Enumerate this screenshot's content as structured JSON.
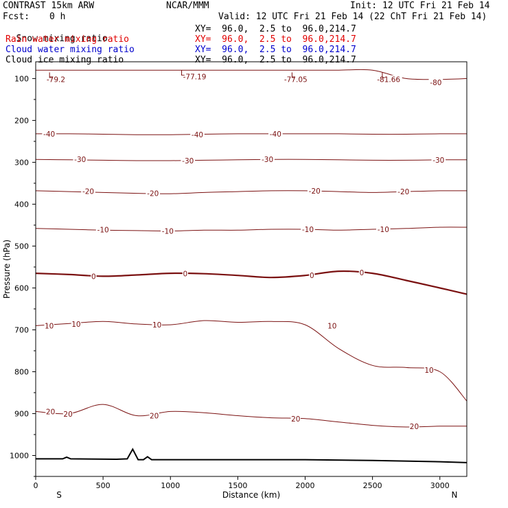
{
  "header": {
    "model": "CONTRAST 15km ARW",
    "org": "NCAR/MMM",
    "init": "Init: 12 UTC Fri 21 Feb 14",
    "fcst_label": "Fcst:",
    "fcst_value": "0 h",
    "valid": "Valid: 12 UTC Fri 21 Feb 14 (22 ChT Fri 21 Feb 14)"
  },
  "legend": [
    {
      "name": "Snow mixing ratio",
      "xy": "XY=  96.0,  2.5 to  96.0,214.7",
      "color": "#000000"
    },
    {
      "name": "Rain water mixing ratio",
      "xy": "XY=  96.0,  2.5 to  96.0,214.7",
      "color": "#e00000"
    },
    {
      "name": "Cloud water mixing ratio",
      "xy": "XY=  96.0,  2.5 to  96.0,214.7",
      "color": "#0000cc"
    },
    {
      "name": "Cloud ice mixing ratio",
      "xy": "XY=  96.0,  2.5 to  96.0,214.7",
      "color": "#000000"
    }
  ],
  "chart_data": {
    "type": "line",
    "title": "",
    "xlabel": "Distance (km)",
    "ylabel": "Pressure (hPa)",
    "xlim": [
      0,
      3200
    ],
    "ylim": [
      1050,
      60
    ],
    "x_ticks": [
      0,
      500,
      1000,
      1500,
      2000,
      2500,
      3000
    ],
    "y_ticks": [
      100,
      200,
      300,
      400,
      500,
      600,
      700,
      800,
      900,
      1000
    ],
    "end_labels": {
      "left": "S",
      "right": "N"
    },
    "contour_color": "#7a1010",
    "terrain_color": "#000000",
    "x": [
      0,
      250,
      500,
      750,
      1000,
      1250,
      1500,
      1750,
      2000,
      2250,
      2500,
      2750,
      3000,
      3200
    ],
    "isotherms": [
      {
        "level": 20,
        "pressure": [
          895,
          900,
          878,
          905,
          895,
          898,
          905,
          910,
          912,
          920,
          928,
          932,
          930,
          930
        ]
      },
      {
        "level": 10,
        "pressure": [
          690,
          685,
          680,
          686,
          688,
          678,
          682,
          680,
          688,
          745,
          785,
          790,
          800,
          870
        ]
      },
      {
        "level": 0,
        "pressure": [
          565,
          568,
          572,
          569,
          565,
          566,
          570,
          575,
          570,
          560,
          565,
          582,
          600,
          615
        ]
      },
      {
        "level": -10,
        "pressure": [
          458,
          460,
          462,
          463,
          464,
          462,
          462,
          460,
          460,
          462,
          460,
          458,
          455,
          455
        ]
      },
      {
        "level": -20,
        "pressure": [
          368,
          370,
          372,
          374,
          375,
          372,
          370,
          368,
          368,
          370,
          372,
          370,
          368,
          368
        ]
      },
      {
        "level": -30,
        "pressure": [
          293,
          294,
          295,
          296,
          296,
          295,
          294,
          293,
          293,
          294,
          295,
          295,
          294,
          294
        ]
      },
      {
        "level": -40,
        "pressure": [
          232,
          232,
          233,
          234,
          234,
          233,
          232,
          232,
          232,
          232,
          233,
          233,
          232,
          232
        ]
      },
      {
        "level": -80,
        "pressure": [
          80,
          80,
          80,
          80,
          80,
          80,
          80,
          80,
          80,
          80,
          80,
          100,
          102,
          100
        ]
      }
    ],
    "contour_labels": [
      {
        "text": "-79.2",
        "x": 150,
        "p": 102
      },
      {
        "text": "-77.19",
        "x": 1180,
        "p": 95
      },
      {
        "text": "-77.05",
        "x": 1930,
        "p": 102
      },
      {
        "text": "-81.66",
        "x": 2620,
        "p": 102
      },
      {
        "text": "-80",
        "x": 2970,
        "p": 109
      },
      {
        "text": "-40",
        "x": 100,
        "p": 232
      },
      {
        "text": "-40",
        "x": 1200,
        "p": 234
      },
      {
        "text": "-40",
        "x": 1780,
        "p": 232
      },
      {
        "text": "-30",
        "x": 330,
        "p": 293
      },
      {
        "text": "-30",
        "x": 1130,
        "p": 296
      },
      {
        "text": "-30",
        "x": 1720,
        "p": 293
      },
      {
        "text": "-30",
        "x": 2990,
        "p": 294
      },
      {
        "text": "-20",
        "x": 390,
        "p": 369
      },
      {
        "text": "-20",
        "x": 870,
        "p": 374
      },
      {
        "text": "-20",
        "x": 2070,
        "p": 368
      },
      {
        "text": "-20",
        "x": 2730,
        "p": 370
      },
      {
        "text": "-10",
        "x": 500,
        "p": 461
      },
      {
        "text": "-10",
        "x": 980,
        "p": 464
      },
      {
        "text": "-10",
        "x": 2020,
        "p": 460
      },
      {
        "text": "-10",
        "x": 2580,
        "p": 460
      },
      {
        "text": "0",
        "x": 430,
        "p": 572
      },
      {
        "text": "0",
        "x": 1110,
        "p": 566
      },
      {
        "text": "0",
        "x": 2050,
        "p": 570
      },
      {
        "text": "0",
        "x": 2420,
        "p": 563
      },
      {
        "text": "10",
        "x": 100,
        "p": 690
      },
      {
        "text": "10",
        "x": 300,
        "p": 686
      },
      {
        "text": "10",
        "x": 900,
        "p": 688
      },
      {
        "text": "10",
        "x": 2200,
        "p": 690
      },
      {
        "text": "10",
        "x": 2920,
        "p": 796
      },
      {
        "text": "20",
        "x": 110,
        "p": 895
      },
      {
        "text": "20",
        "x": 240,
        "p": 901
      },
      {
        "text": "20",
        "x": 880,
        "p": 905
      },
      {
        "text": "20",
        "x": 1930,
        "p": 912
      },
      {
        "text": "20",
        "x": 2810,
        "p": 930
      }
    ],
    "low_markers": [
      {
        "text": "L",
        "x": 110,
        "p": 92
      },
      {
        "text": "L",
        "x": 1090,
        "p": 86
      },
      {
        "text": "L",
        "x": 1910,
        "p": 92
      },
      {
        "text": "L",
        "x": 2580,
        "p": 92
      }
    ],
    "terrain": {
      "x": [
        0,
        200,
        230,
        260,
        600,
        680,
        720,
        760,
        800,
        830,
        860,
        890,
        1200,
        2000,
        2500,
        3000,
        3200
      ],
      "pressure": [
        1008,
        1008,
        1004,
        1008,
        1009,
        1008,
        985,
        1010,
        1010,
        1003,
        1010,
        1010,
        1010,
        1010,
        1012,
        1015,
        1017
      ]
    }
  }
}
